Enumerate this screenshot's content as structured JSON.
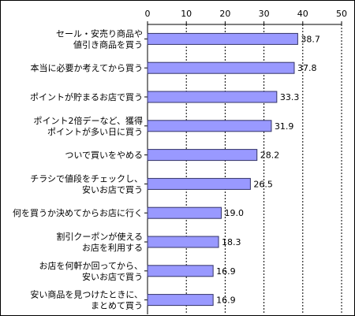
{
  "chart_data": {
    "type": "bar",
    "orientation": "horizontal",
    "categories": [
      [
        "セール・安売り商品や",
        "値引き商品を買う"
      ],
      [
        "本当に必要か考えてから買う"
      ],
      [
        "ポイントが貯まるお店で買う"
      ],
      [
        "ポイント2倍デーなど、獲得",
        "ポイントが多い日に買う"
      ],
      [
        "ついで買いをやめる"
      ],
      [
        "チラシで値段をチェックし、",
        "安いお店で買う"
      ],
      [
        "何を買うか決めてからお店に行く"
      ],
      [
        "割引クーポンが使える",
        "お店を利用する"
      ],
      [
        "お店を何軒か回ってから、",
        "安いお店で買う"
      ],
      [
        "安い商品を見つけたときに、",
        "まとめて買う"
      ]
    ],
    "values": [
      38.7,
      37.8,
      33.3,
      31.9,
      28.2,
      26.5,
      19.0,
      18.3,
      16.9,
      16.9
    ],
    "value_labels": [
      "38.7",
      "37.8",
      "33.3",
      "31.9",
      "28.2",
      "26.5",
      "19.0",
      "18.3",
      "16.9",
      "16.9"
    ],
    "xlim": [
      0,
      50
    ],
    "xticks": [
      "0",
      "10",
      "20",
      "30",
      "40",
      "50"
    ],
    "axis_position": "top",
    "grid": "vertical dashed",
    "bar_fill": "#9999ff",
    "bar_stroke": "#333366"
  }
}
